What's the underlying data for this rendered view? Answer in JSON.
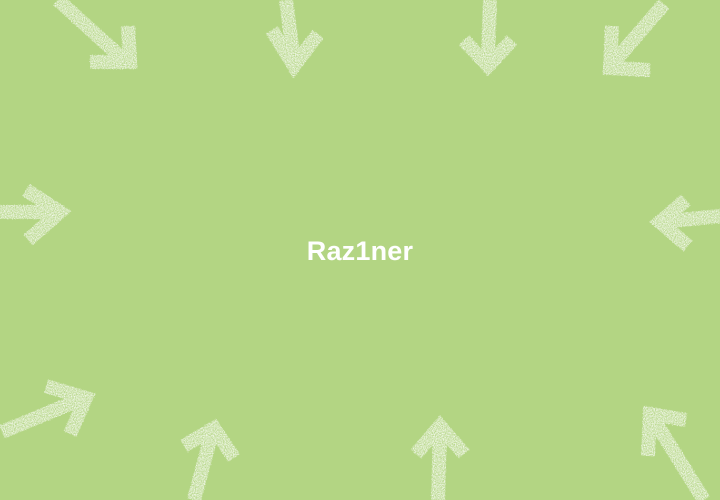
{
  "title": "Raz1ner",
  "colors": {
    "background": "#b3d583",
    "arrow": "#ffffff",
    "text": "#ffffff"
  },
  "decorations": [
    "arrow-icon"
  ]
}
